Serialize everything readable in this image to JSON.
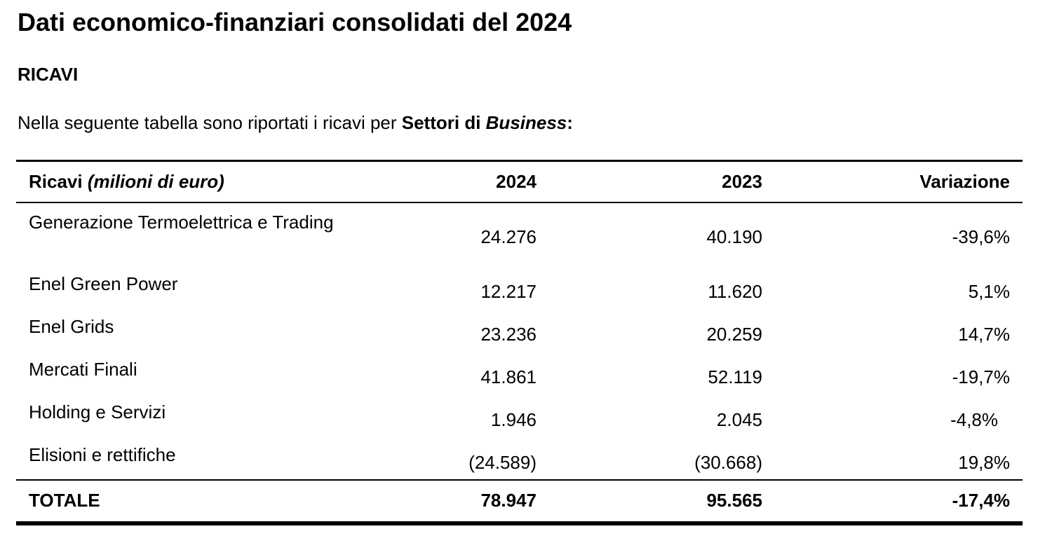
{
  "document": {
    "title": "Dati economico-finanziari consolidati del 2024",
    "section_heading": "RICAVI",
    "intro": {
      "text": "Nella seguente tabella sono riportati i ricavi per ",
      "bold_text": "Settori di ",
      "bold_italic_text": "Business",
      "suffix": ":"
    }
  },
  "table": {
    "header": {
      "label_bold": "Ricavi ",
      "label_italic": "(milioni di euro)",
      "col_2024": "2024",
      "col_2023": "2023",
      "col_variation": "Variazione"
    },
    "rows": [
      {
        "label": "Generazione Termoelettrica e Trading",
        "v2024": "24.276",
        "v2023": "40.190",
        "variation": "-39,6%"
      },
      {
        "label": "Enel Green Power",
        "v2024": "12.217",
        "v2023": "11.620",
        "variation": "5,1%"
      },
      {
        "label": "Enel Grids",
        "v2024": "23.236",
        "v2023": "20.259",
        "variation": "14,7%"
      },
      {
        "label": "Mercati Finali",
        "v2024": "41.861",
        "v2023": "52.119",
        "variation": "-19,7%"
      },
      {
        "label": "Holding e Servizi",
        "v2024": "1.946",
        "v2023": "2.045",
        "variation": "-4,8%"
      },
      {
        "label": "Elisioni e rettifiche",
        "v2024": "(24.589)",
        "v2023": "(30.668)",
        "variation": "19,8%"
      }
    ],
    "total": {
      "label": "TOTALE",
      "v2024": "78.947",
      "v2023": "95.565",
      "variation": "-17,4%"
    }
  }
}
